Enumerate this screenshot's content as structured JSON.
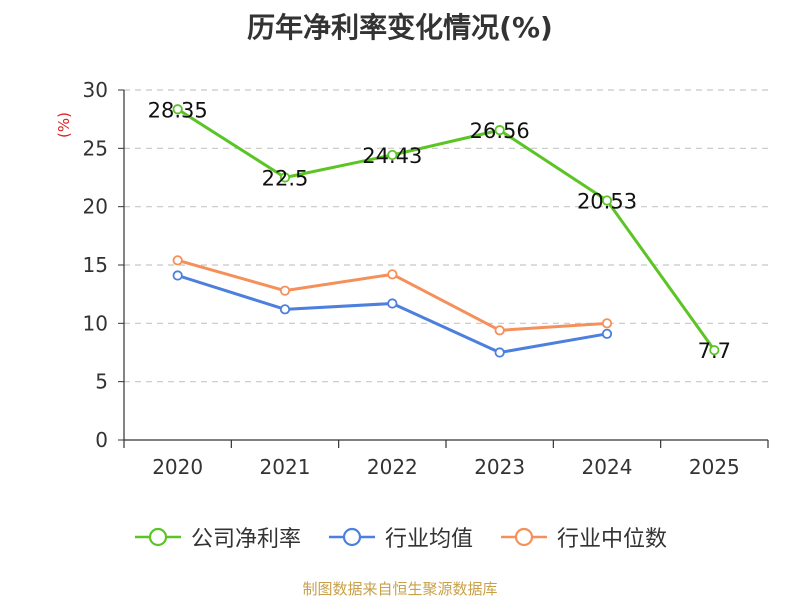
{
  "chart_data": {
    "type": "line",
    "title": "历年净利率变化情况(%)",
    "ylabel": "(%)",
    "xlabel": "",
    "categories": [
      "2020",
      "2021",
      "2022",
      "2023",
      "2024",
      "2025"
    ],
    "ylim": [
      0,
      30
    ],
    "yticks": [
      0,
      5,
      10,
      15,
      20,
      25,
      30
    ],
    "grid": true,
    "legend_position": "bottom",
    "series": [
      {
        "name": "公司净利率",
        "color": "#5cc425",
        "values": [
          28.35,
          22.5,
          24.43,
          26.56,
          20.53,
          7.7
        ],
        "labels": [
          "28.35",
          "22.5",
          "24.43",
          "26.56",
          "20.53",
          "7.7"
        ]
      },
      {
        "name": "行业均值",
        "color": "#4c7fde",
        "values": [
          14.1,
          11.2,
          11.7,
          7.5,
          9.1,
          null
        ]
      },
      {
        "name": "行业中位数",
        "color": "#f5905a",
        "values": [
          15.4,
          12.8,
          14.2,
          9.4,
          10.0,
          null
        ]
      }
    ],
    "source": "制图数据来自恒生聚源数据库",
    "ylabel_color": "#e02020"
  }
}
